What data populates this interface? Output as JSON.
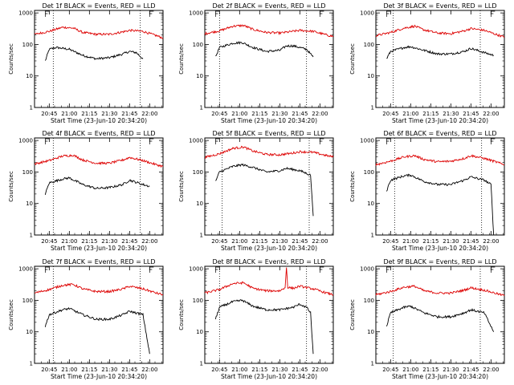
{
  "figure": {
    "colors": {
      "events": "#000000",
      "lld": "#dd0000",
      "axes": "#000000"
    }
  },
  "chart_data": [
    {
      "type": "line",
      "title": "Det 1f BLACK = Events, RED = LLD",
      "xlabel": "Start Time (23-Jun-10 20:34:20)",
      "ylabel": "Counts/sec",
      "x_ticks": [
        "20:45",
        "21:00",
        "21:15",
        "21:30",
        "21:45",
        "22:00"
      ],
      "y_ticks": [
        "1",
        "10",
        "100",
        "1000"
      ],
      "y_scale": "log",
      "ylim": [
        1,
        1200
      ],
      "x_range": [
        "20:34",
        "22:10"
      ],
      "flag_markers": [
        "20:42",
        "22:00"
      ],
      "event_markers": [
        "20:48",
        "21:53"
      ],
      "grid": false,
      "series": [
        {
          "name": "Events",
          "color": "#000000",
          "x": [
            "20:42",
            "20:45",
            "20:50",
            "21:00",
            "21:10",
            "21:20",
            "21:30",
            "21:40",
            "21:45",
            "21:50",
            "21:55"
          ],
          "y": [
            30,
            70,
            80,
            70,
            45,
            35,
            38,
            50,
            60,
            55,
            35
          ]
        },
        {
          "name": "LLD",
          "color": "#dd0000",
          "x": [
            "20:34",
            "20:45",
            "20:55",
            "21:03",
            "21:10",
            "21:20",
            "21:30",
            "21:40",
            "21:45",
            "21:55",
            "22:05",
            "22:10"
          ],
          "y": [
            210,
            260,
            350,
            330,
            240,
            210,
            210,
            250,
            280,
            260,
            190,
            160
          ]
        }
      ]
    },
    {
      "type": "line",
      "title": "Det 2f BLACK = Events, RED = LLD",
      "xlabel": "Start Time (23-Jun-10 20:34:20)",
      "ylabel": "Counts/sec",
      "x_ticks": [
        "20:45",
        "21:00",
        "21:15",
        "21:30",
        "21:45",
        "22:00"
      ],
      "y_ticks": [
        "1",
        "10",
        "100",
        "1000"
      ],
      "y_scale": "log",
      "ylim": [
        1,
        1200
      ],
      "x_range": [
        "20:34",
        "22:10"
      ],
      "flag_markers": [
        "20:42",
        "22:00"
      ],
      "event_markers": [
        "20:45",
        "21:50"
      ],
      "grid": false,
      "series": [
        {
          "name": "Events",
          "color": "#000000",
          "x": [
            "20:42",
            "20:45",
            "20:55",
            "21:02",
            "21:10",
            "21:20",
            "21:30",
            "21:35",
            "21:40",
            "21:45",
            "21:50",
            "21:55"
          ],
          "y": [
            40,
            80,
            110,
            115,
            80,
            60,
            65,
            90,
            90,
            80,
            70,
            40
          ]
        },
        {
          "name": "LLD",
          "color": "#dd0000",
          "x": [
            "20:34",
            "20:45",
            "20:55",
            "21:03",
            "21:10",
            "21:20",
            "21:30",
            "21:40",
            "21:45",
            "21:55",
            "22:05",
            "22:10"
          ],
          "y": [
            220,
            270,
            380,
            400,
            300,
            240,
            230,
            260,
            280,
            260,
            200,
            180
          ]
        }
      ]
    },
    {
      "type": "line",
      "title": "Det 3f BLACK = Events, RED = LLD",
      "xlabel": "Start Time (23-Jun-10 20:34:20)",
      "ylabel": "Counts/sec",
      "x_ticks": [
        "20:45",
        "21:00",
        "21:15",
        "21:30",
        "21:45",
        "22:00"
      ],
      "y_ticks": [
        "1",
        "10",
        "100",
        "1000"
      ],
      "y_scale": "log",
      "ylim": [
        1,
        1200
      ],
      "x_range": [
        "20:34",
        "22:10"
      ],
      "flag_markers": [
        "20:42",
        "22:00"
      ],
      "event_markers": [
        "20:47",
        "21:52"
      ],
      "grid": false,
      "series": [
        {
          "name": "Events",
          "color": "#000000",
          "x": [
            "20:42",
            "20:45",
            "20:55",
            "21:00",
            "21:10",
            "21:20",
            "21:30",
            "21:40",
            "21:45",
            "21:55",
            "22:02"
          ],
          "y": [
            35,
            60,
            80,
            85,
            65,
            50,
            50,
            60,
            75,
            55,
            45
          ]
        },
        {
          "name": "LLD",
          "color": "#dd0000",
          "x": [
            "20:34",
            "20:45",
            "20:55",
            "21:03",
            "21:10",
            "21:20",
            "21:30",
            "21:40",
            "21:45",
            "21:55",
            "22:05",
            "22:10"
          ],
          "y": [
            190,
            240,
            330,
            380,
            290,
            230,
            220,
            270,
            320,
            280,
            200,
            170
          ]
        }
      ]
    },
    {
      "type": "line",
      "title": "Det 4f BLACK = Events, RED = LLD",
      "xlabel": "Start Time (23-Jun-10 20:34:20)",
      "ylabel": "Counts/sec",
      "x_ticks": [
        "20:45",
        "21:00",
        "21:15",
        "21:30",
        "21:45",
        "22:00"
      ],
      "y_ticks": [
        "1",
        "10",
        "100",
        "1000"
      ],
      "y_scale": "log",
      "ylim": [
        1,
        1200
      ],
      "x_range": [
        "20:34",
        "22:10"
      ],
      "flag_markers": [
        "20:42",
        "22:00"
      ],
      "event_markers": [
        "20:48",
        "21:53"
      ],
      "grid": false,
      "series": [
        {
          "name": "Events",
          "color": "#000000",
          "x": [
            "20:42",
            "20:45",
            "20:55",
            "21:00",
            "21:10",
            "21:20",
            "21:30",
            "21:40",
            "21:45",
            "21:55",
            "22:00"
          ],
          "y": [
            20,
            45,
            60,
            65,
            40,
            30,
            32,
            40,
            55,
            40,
            35
          ]
        },
        {
          "name": "LLD",
          "color": "#dd0000",
          "x": [
            "20:34",
            "20:45",
            "20:55",
            "21:03",
            "21:10",
            "21:20",
            "21:30",
            "21:40",
            "21:45",
            "21:55",
            "22:05",
            "22:10"
          ],
          "y": [
            180,
            230,
            320,
            340,
            240,
            190,
            190,
            240,
            290,
            230,
            170,
            150
          ]
        }
      ]
    },
    {
      "type": "line",
      "title": "Det 5f BLACK = Events, RED = LLD",
      "xlabel": "Start Time (23-Jun-10 20:34:20)",
      "ylabel": "Counts/sec",
      "x_ticks": [
        "20:45",
        "21:00",
        "21:15",
        "21:30",
        "21:45",
        "22:00"
      ],
      "y_ticks": [
        "1",
        "10",
        "100",
        "1000"
      ],
      "y_scale": "log",
      "ylim": [
        1,
        1200
      ],
      "x_range": [
        "20:34",
        "22:10"
      ],
      "flag_markers": [
        "20:42",
        "22:00"
      ],
      "event_markers": [
        "20:47",
        "21:52"
      ],
      "grid": false,
      "series": [
        {
          "name": "Events",
          "color": "#000000",
          "x": [
            "20:42",
            "20:45",
            "20:55",
            "21:02",
            "21:10",
            "21:20",
            "21:30",
            "21:35",
            "21:40",
            "21:45",
            "21:50",
            "21:53",
            "21:55"
          ],
          "y": [
            50,
            100,
            150,
            170,
            140,
            100,
            110,
            130,
            120,
            110,
            90,
            80,
            4
          ]
        },
        {
          "name": "LLD",
          "color": "#dd0000",
          "x": [
            "20:34",
            "20:45",
            "20:55",
            "21:03",
            "21:10",
            "21:20",
            "21:30",
            "21:40",
            "21:45",
            "21:55",
            "22:05",
            "22:10"
          ],
          "y": [
            290,
            380,
            560,
            620,
            460,
            360,
            350,
            400,
            440,
            420,
            330,
            300
          ]
        }
      ]
    },
    {
      "type": "line",
      "title": "Det 6f BLACK = Events, RED = LLD",
      "xlabel": "Start Time (23-Jun-10 20:34:20)",
      "ylabel": "Counts/sec",
      "x_ticks": [
        "20:45",
        "21:00",
        "21:15",
        "21:30",
        "21:45",
        "22:00"
      ],
      "y_ticks": [
        "1",
        "10",
        "100",
        "1000"
      ],
      "y_scale": "log",
      "ylim": [
        1,
        1200
      ],
      "x_range": [
        "20:34",
        "22:10"
      ],
      "flag_markers": [
        "20:42",
        "22:00"
      ],
      "event_markers": [
        "20:48",
        "21:53"
      ],
      "grid": false,
      "series": [
        {
          "name": "Events",
          "color": "#000000",
          "x": [
            "20:42",
            "20:45",
            "20:55",
            "21:00",
            "21:10",
            "21:20",
            "21:30",
            "21:40",
            "21:45",
            "21:55",
            "22:00",
            "22:02"
          ],
          "y": [
            25,
            55,
            75,
            80,
            50,
            40,
            40,
            55,
            70,
            55,
            40,
            1
          ]
        },
        {
          "name": "LLD",
          "color": "#dd0000",
          "x": [
            "20:34",
            "20:45",
            "20:55",
            "21:03",
            "21:10",
            "21:20",
            "21:30",
            "21:40",
            "21:45",
            "21:55",
            "22:05",
            "22:10"
          ],
          "y": [
            170,
            220,
            300,
            330,
            250,
            210,
            220,
            270,
            330,
            270,
            200,
            170
          ]
        }
      ]
    },
    {
      "type": "line",
      "title": "Det 7f BLACK = Events, RED = LLD",
      "xlabel": "Start Time (23-Jun-10 20:34:20)",
      "ylabel": "Counts/sec",
      "x_ticks": [
        "20:45",
        "21:00",
        "21:15",
        "21:30",
        "21:45",
        "22:00"
      ],
      "y_ticks": [
        "1",
        "10",
        "100",
        "1000"
      ],
      "y_scale": "log",
      "ylim": [
        1,
        1200
      ],
      "x_range": [
        "20:34",
        "22:10"
      ],
      "flag_markers": [
        "20:42",
        "22:00"
      ],
      "event_markers": [
        "20:48",
        "21:53"
      ],
      "grid": false,
      "series": [
        {
          "name": "Events",
          "color": "#000000",
          "x": [
            "20:42",
            "20:45",
            "20:55",
            "21:00",
            "21:10",
            "21:20",
            "21:30",
            "21:40",
            "21:45",
            "21:55",
            "22:00"
          ],
          "y": [
            15,
            35,
            50,
            55,
            35,
            25,
            25,
            35,
            45,
            35,
            2
          ]
        },
        {
          "name": "LLD",
          "color": "#dd0000",
          "x": [
            "20:34",
            "20:45",
            "20:55",
            "21:03",
            "21:10",
            "21:20",
            "21:30",
            "21:40",
            "21:45",
            "21:55",
            "22:05",
            "22:10"
          ],
          "y": [
            170,
            220,
            300,
            320,
            230,
            190,
            190,
            230,
            280,
            230,
            170,
            150
          ]
        }
      ]
    },
    {
      "type": "line",
      "title": "Det 8f BLACK = Events, RED = LLD",
      "xlabel": "Start Time (23-Jun-10 20:34:20)",
      "ylabel": "Counts/sec",
      "x_ticks": [
        "20:45",
        "21:00",
        "21:15",
        "21:30",
        "21:45",
        "22:00"
      ],
      "y_ticks": [
        "1",
        "10",
        "100",
        "1000"
      ],
      "y_scale": "log",
      "ylim": [
        1,
        1200
      ],
      "x_range": [
        "20:34",
        "22:10"
      ],
      "flag_markers": [
        "20:42",
        "22:00"
      ],
      "event_markers": [
        "20:45",
        "21:50"
      ],
      "grid": false,
      "series": [
        {
          "name": "Events",
          "color": "#000000",
          "x": [
            "20:42",
            "20:45",
            "20:55",
            "21:02",
            "21:10",
            "21:20",
            "21:30",
            "21:40",
            "21:45",
            "21:50",
            "21:53",
            "21:55"
          ],
          "y": [
            25,
            60,
            90,
            100,
            65,
            50,
            50,
            60,
            75,
            60,
            40,
            2
          ]
        },
        {
          "name": "LLD",
          "color": "#dd0000",
          "x": [
            "20:34",
            "20:45",
            "20:55",
            "21:03",
            "21:10",
            "21:20",
            "21:30",
            "21:34",
            "21:35",
            "21:36",
            "21:40",
            "21:45",
            "21:55",
            "22:05",
            "22:10"
          ],
          "y": [
            170,
            220,
            340,
            360,
            240,
            200,
            200,
            250,
            1100,
            260,
            240,
            280,
            230,
            170,
            150
          ]
        }
      ]
    },
    {
      "type": "line",
      "title": "Det 9f BLACK = Events, RED = LLD",
      "xlabel": "Start Time (23-Jun-10 20:34:20)",
      "ylabel": "Counts/sec",
      "x_ticks": [
        "20:45",
        "21:00",
        "21:15",
        "21:30",
        "21:45",
        "22:00"
      ],
      "y_ticks": [
        "1",
        "10",
        "100",
        "1000"
      ],
      "y_scale": "log",
      "ylim": [
        1,
        1200
      ],
      "x_range": [
        "20:34",
        "22:10"
      ],
      "flag_markers": [
        "20:42",
        "22:00"
      ],
      "event_markers": [
        "20:47",
        "21:52"
      ],
      "grid": false,
      "series": [
        {
          "name": "Events",
          "color": "#000000",
          "x": [
            "20:42",
            "20:45",
            "20:55",
            "21:00",
            "21:10",
            "21:20",
            "21:30",
            "21:40",
            "21:45",
            "21:55",
            "22:02"
          ],
          "y": [
            15,
            40,
            60,
            65,
            40,
            30,
            30,
            40,
            50,
            40,
            10
          ]
        },
        {
          "name": "LLD",
          "color": "#dd0000",
          "x": [
            "20:34",
            "20:45",
            "20:55",
            "21:03",
            "21:10",
            "21:20",
            "21:30",
            "21:40",
            "21:45",
            "21:55",
            "22:05",
            "22:10"
          ],
          "y": [
            150,
            190,
            260,
            280,
            200,
            170,
            170,
            210,
            250,
            210,
            160,
            140
          ]
        }
      ]
    }
  ]
}
